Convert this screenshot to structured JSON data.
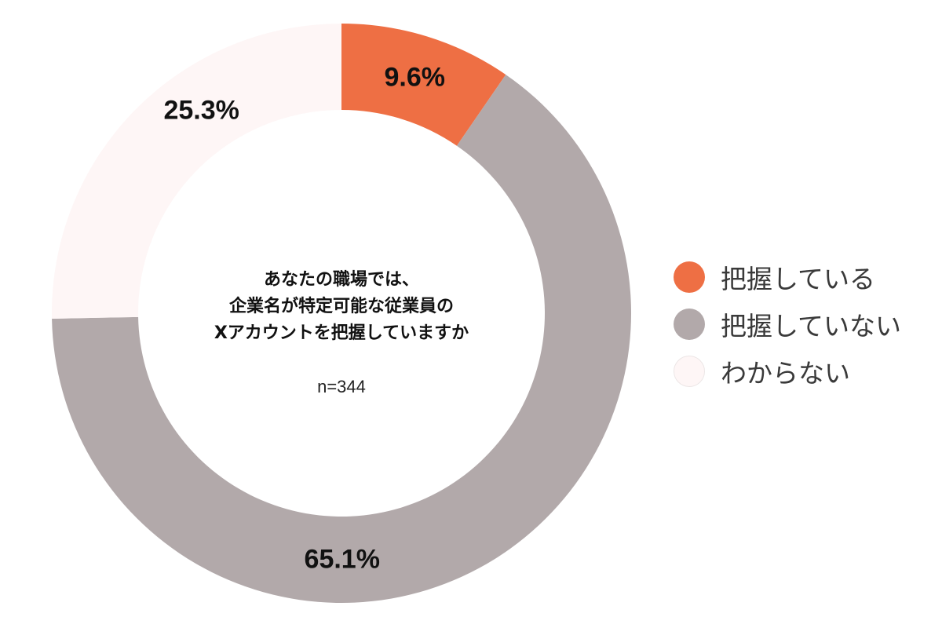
{
  "chart_data": {
    "type": "pie",
    "variant": "donut",
    "title": "あなたの職場では、企業名が特定可能な従業員のXアカウントを把握していますか",
    "sample_size": "n=344",
    "categories": [
      "把握している",
      "把握していない",
      "わからない"
    ],
    "values": [
      9.6,
      65.1,
      25.3
    ],
    "value_labels": [
      "9.6%",
      "65.1%",
      "25.3%"
    ],
    "colors": [
      "#EE6F44",
      "#B2A9AA",
      "#FEF6F6"
    ],
    "start_angle_deg": 0,
    "direction": "clockwise",
    "legend_position": "right"
  },
  "center": {
    "question_lines": [
      "あなたの職場では、",
      "企業名が特定可能な従業員の",
      "Xアカウントを把握していますか"
    ],
    "n_label": "n=344"
  },
  "legend": {
    "items": [
      {
        "label": "把握している",
        "color": "#EE6F44"
      },
      {
        "label": "把握していない",
        "color": "#B2A9AA"
      },
      {
        "label": "わからない",
        "color": "#FEF6F6"
      }
    ]
  }
}
